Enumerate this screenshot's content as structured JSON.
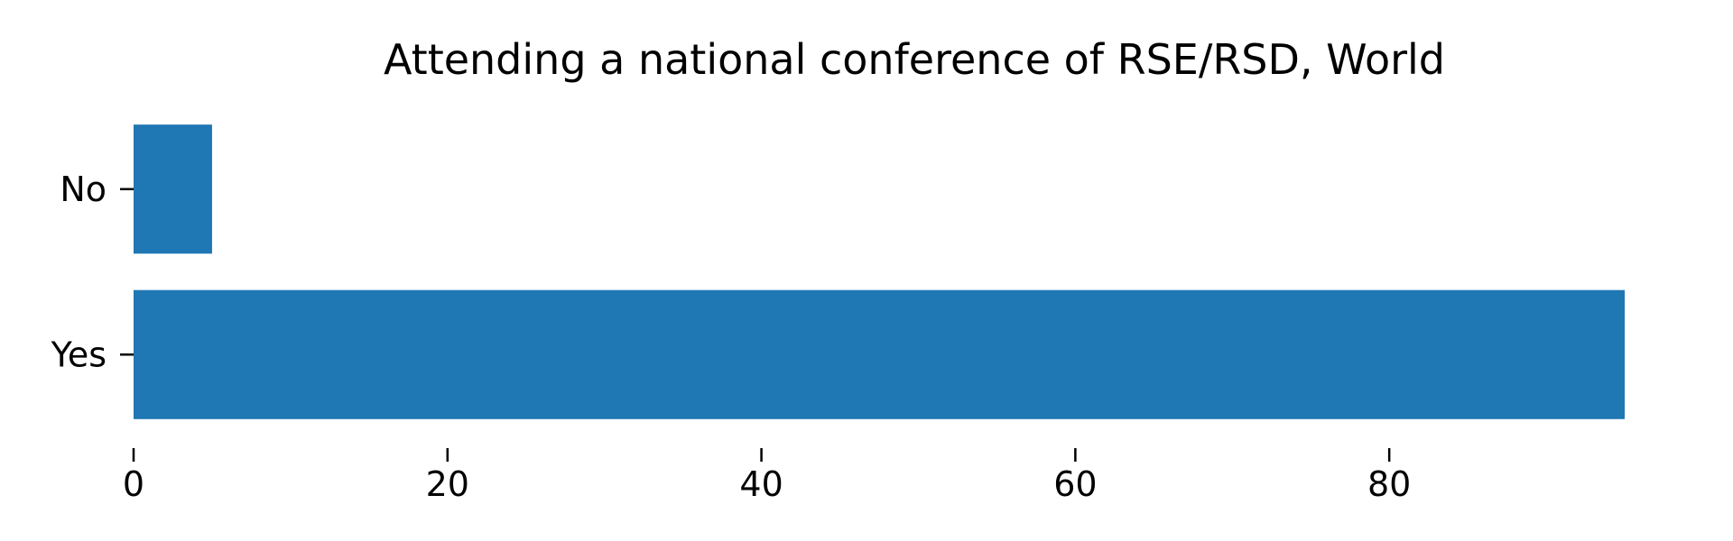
{
  "chart_data": {
    "type": "bar",
    "orientation": "horizontal",
    "title": "Attending a national conference of RSE/RSD, World",
    "xlabel": "",
    "ylabel": "",
    "categories": [
      "No",
      "Yes"
    ],
    "values": [
      5,
      95
    ],
    "xlim": [
      0,
      95
    ],
    "xticks": [
      0,
      20,
      40,
      60,
      80
    ],
    "grid": false,
    "legend": "none",
    "bar_color": "#1f77b4"
  }
}
